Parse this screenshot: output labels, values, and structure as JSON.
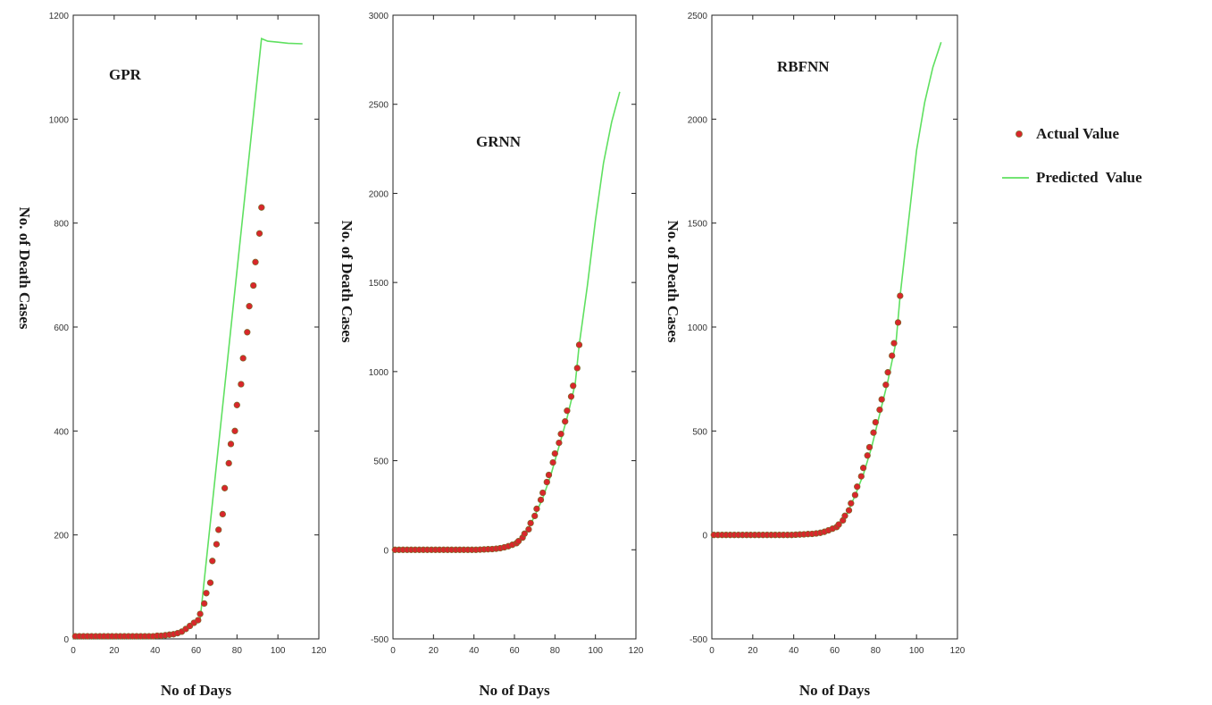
{
  "chart_data": [
    {
      "type": "line",
      "title": "GPR",
      "xlabel": "No of Days",
      "ylabel": "No. of Death Cases",
      "xlim": [
        0,
        120
      ],
      "ylim": [
        0,
        1200
      ],
      "xticks": [
        "0",
        "20",
        "40",
        "60",
        "80",
        "100",
        "120"
      ],
      "yticks": [
        "0",
        "200",
        "400",
        "600",
        "800",
        "1000",
        "1200"
      ],
      "actual": {
        "x": [
          1,
          3,
          5,
          7,
          9,
          11,
          13,
          15,
          17,
          19,
          21,
          23,
          25,
          27,
          29,
          31,
          33,
          35,
          37,
          39,
          41,
          43,
          45,
          47,
          49,
          51,
          53,
          55,
          57,
          59,
          61,
          62,
          64,
          65,
          67,
          68,
          70,
          71,
          73,
          74,
          76,
          77,
          79,
          80,
          82,
          83,
          85,
          86,
          88,
          89,
          91,
          92
        ],
        "y": [
          5,
          5,
          5,
          5,
          5,
          5,
          5,
          5,
          5,
          5,
          5,
          5,
          5,
          5,
          5,
          5,
          5,
          5,
          5,
          5,
          6,
          6,
          7,
          8,
          9,
          11,
          14,
          19,
          25,
          31,
          36,
          48,
          68,
          88,
          108,
          150,
          182,
          210,
          240,
          290,
          338,
          375,
          400,
          450,
          490,
          540,
          590,
          640,
          680,
          725,
          780,
          830
        ]
      },
      "predicted": {
        "x": [
          0,
          46,
          54,
          58,
          62,
          92,
          95,
          100,
          105,
          112
        ],
        "y": [
          3,
          7,
          14,
          25,
          38,
          1155,
          1150,
          1148,
          1146,
          1145
        ]
      }
    },
    {
      "type": "line",
      "title": "GRNN",
      "xlabel": "No of Days",
      "ylabel": "No. of Death Cases",
      "xlim": [
        0,
        120
      ],
      "ylim": [
        -500,
        3000
      ],
      "xticks": [
        "0",
        "20",
        "40",
        "60",
        "80",
        "100",
        "120"
      ],
      "yticks": [
        "-500",
        "0",
        "500",
        "1000",
        "1500",
        "2000",
        "2500",
        "3000"
      ],
      "actual": {
        "x": [
          1,
          3,
          5,
          7,
          9,
          11,
          13,
          15,
          17,
          19,
          21,
          23,
          25,
          27,
          29,
          31,
          33,
          35,
          37,
          39,
          41,
          43,
          45,
          47,
          49,
          51,
          53,
          55,
          57,
          59,
          61,
          62,
          64,
          65,
          67,
          68,
          70,
          71,
          73,
          74,
          76,
          77,
          79,
          80,
          82,
          83,
          85,
          86,
          88,
          89,
          91,
          92
        ],
        "y": [
          0,
          0,
          0,
          0,
          0,
          0,
          0,
          0,
          0,
          0,
          0,
          0,
          0,
          0,
          0,
          0,
          0,
          0,
          0,
          0,
          0,
          1,
          2,
          3,
          4,
          6,
          9,
          14,
          20,
          28,
          37,
          48,
          68,
          90,
          115,
          150,
          190,
          230,
          280,
          320,
          380,
          420,
          490,
          540,
          600,
          650,
          720,
          780,
          860,
          920,
          1020,
          1150
        ]
      },
      "predicted": {
        "x": [
          0,
          46,
          54,
          58,
          62,
          66,
          70,
          74,
          78,
          82,
          86,
          90,
          92,
          96,
          100,
          104,
          108,
          112
        ],
        "y": [
          0,
          3,
          12,
          25,
          45,
          100,
          190,
          290,
          420,
          580,
          740,
          930,
          1150,
          1480,
          1850,
          2170,
          2400,
          2570
        ]
      }
    },
    {
      "type": "line",
      "title": "RBFNN",
      "xlabel": "No of Days",
      "ylabel": "No. of Death Cases",
      "xlim": [
        0,
        120
      ],
      "ylim": [
        -500,
        2500
      ],
      "xticks": [
        "0",
        "20",
        "40",
        "60",
        "80",
        "100",
        "120"
      ],
      "yticks": [
        "-500",
        "0",
        "500",
        "1000",
        "1500",
        "2000",
        "2500"
      ],
      "actual": {
        "x": [
          1,
          3,
          5,
          7,
          9,
          11,
          13,
          15,
          17,
          19,
          21,
          23,
          25,
          27,
          29,
          31,
          33,
          35,
          37,
          39,
          41,
          43,
          45,
          47,
          49,
          51,
          53,
          55,
          57,
          59,
          61,
          62,
          64,
          65,
          67,
          68,
          70,
          71,
          73,
          74,
          76,
          77,
          79,
          80,
          82,
          83,
          85,
          86,
          88,
          89,
          91,
          92
        ],
        "y": [
          0,
          0,
          0,
          0,
          0,
          0,
          0,
          0,
          0,
          0,
          0,
          0,
          0,
          0,
          0,
          0,
          0,
          0,
          0,
          0,
          1,
          2,
          3,
          4,
          5,
          7,
          10,
          15,
          22,
          30,
          38,
          50,
          70,
          92,
          118,
          152,
          192,
          232,
          282,
          322,
          382,
          422,
          492,
          542,
          602,
          652,
          722,
          782,
          862,
          922,
          1022,
          1150
        ]
      },
      "predicted": {
        "x": [
          0,
          46,
          54,
          58,
          62,
          66,
          70,
          74,
          78,
          82,
          86,
          90,
          92,
          96,
          100,
          104,
          108,
          112
        ],
        "y": [
          0,
          3,
          12,
          25,
          45,
          100,
          190,
          290,
          420,
          580,
          740,
          930,
          1150,
          1500,
          1850,
          2080,
          2250,
          2370
        ]
      }
    }
  ],
  "legend": {
    "actual_label": "Actual Value",
    "predicted_label": "Predicted  Value",
    "actual_color": "#d9262b",
    "actual_edge_color": "#7a6a2a",
    "predicted_color": "#5fe060"
  }
}
